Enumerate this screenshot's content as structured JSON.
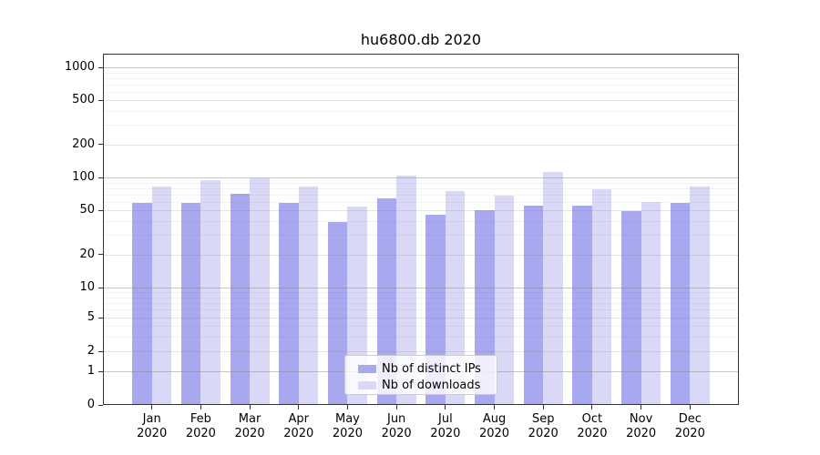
{
  "chart_data": {
    "type": "bar",
    "title": "hu6800.db 2020",
    "categories": [
      "Jan",
      "Feb",
      "Mar",
      "Apr",
      "May",
      "Jun",
      "Jul",
      "Aug",
      "Sep",
      "Oct",
      "Nov",
      "Dec"
    ],
    "x_tick_year": "2020",
    "series": [
      {
        "name": "Nb of distinct IPs",
        "color": "#a8a8f0",
        "values": [
          59,
          59,
          71,
          59,
          39,
          64,
          46,
          50,
          55,
          55,
          49,
          59
        ]
      },
      {
        "name": "Nb of downloads",
        "color": "#d9d9f7",
        "values": [
          82,
          95,
          98,
          82,
          54,
          104,
          75,
          68,
          112,
          78,
          60,
          83
        ]
      }
    ],
    "y_ticks": [
      0,
      1,
      2,
      5,
      10,
      20,
      50,
      100,
      200,
      500,
      1000
    ],
    "y_scale": "symlog",
    "ylim": [
      0,
      1320
    ],
    "grid": true,
    "legend_position": "lower center"
  }
}
